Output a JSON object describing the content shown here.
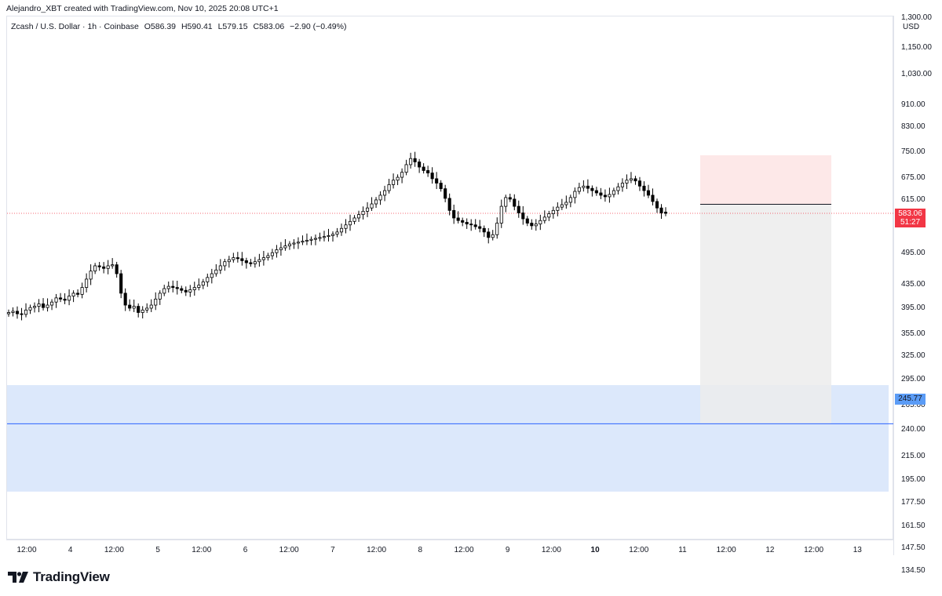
{
  "credit": "Alejandro_XBT created with TradingView.com, Nov 10, 2025 20:08 UTC+1",
  "symbol": {
    "name": "Zcash / U.S. Dollar · 1h · Coinbase",
    "open": "O586.39",
    "high": "H590.41",
    "low": "L579.15",
    "close": "C583.06",
    "change": "−2.90 (−0.49%)"
  },
  "currency": "USD",
  "price_tag": {
    "price": "583.06",
    "countdown": "51:27"
  },
  "level_tag": "245.77",
  "brand": "TradingView",
  "colors": {
    "up": "#ffffff",
    "down": "#000000",
    "stop_zone": "#fde8e8",
    "target_zone": "#ececec",
    "support_zone": "#dce8fb",
    "level_line": "#2962ff",
    "price_line": "#f23645"
  },
  "chart_data": {
    "type": "candlestick",
    "scale": "log",
    "ylim": [
      125,
      1400
    ],
    "y_ticks": [
      "1,300.00",
      "1,150.00",
      "1,030.00",
      "910.00",
      "830.00",
      "750.00",
      "675.00",
      "615.00",
      "495.00",
      "435.00",
      "395.00",
      "355.00",
      "325.00",
      "295.00",
      "265.00",
      "240.00",
      "215.00",
      "195.00",
      "177.50",
      "161.50",
      "147.50",
      "134.50"
    ],
    "x_ticks": [
      {
        "label": "12:00",
        "bold": false
      },
      {
        "label": "4",
        "bold": false
      },
      {
        "label": "12:00",
        "bold": false
      },
      {
        "label": "5",
        "bold": false
      },
      {
        "label": "12:00",
        "bold": false
      },
      {
        "label": "6",
        "bold": false
      },
      {
        "label": "12:00",
        "bold": false
      },
      {
        "label": "7",
        "bold": false
      },
      {
        "label": "12:00",
        "bold": false
      },
      {
        "label": "8",
        "bold": false
      },
      {
        "label": "12:00",
        "bold": false
      },
      {
        "label": "9",
        "bold": false
      },
      {
        "label": "12:00",
        "bold": false
      },
      {
        "label": "10",
        "bold": true
      },
      {
        "label": "12:00",
        "bold": false
      },
      {
        "label": "11",
        "bold": false
      },
      {
        "label": "12:00",
        "bold": false
      },
      {
        "label": "12",
        "bold": false
      },
      {
        "label": "12:00",
        "bold": false
      },
      {
        "label": "13",
        "bold": false
      }
    ],
    "candles_close": [
      388,
      390,
      386,
      385,
      392,
      396,
      398,
      402,
      396,
      400,
      405,
      412,
      410,
      408,
      415,
      420,
      418,
      430,
      445,
      460,
      470,
      468,
      465,
      470,
      472,
      455,
      420,
      400,
      395,
      398,
      388,
      392,
      395,
      400,
      410,
      420,
      428,
      432,
      430,
      428,
      425,
      422,
      426,
      430,
      434,
      440,
      448,
      455,
      462,
      470,
      478,
      482,
      486,
      484,
      480,
      476,
      474,
      478,
      482,
      486,
      490,
      496,
      502,
      506,
      510,
      514,
      516,
      518,
      520,
      522,
      524,
      526,
      528,
      530,
      532,
      535,
      540,
      548,
      556,
      564,
      572,
      580,
      588,
      596,
      606,
      616,
      628,
      640,
      656,
      668,
      676,
      690,
      712,
      730,
      720,
      705,
      695,
      688,
      672,
      660,
      645,
      620,
      590,
      572,
      566,
      562,
      558,
      556,
      552,
      548,
      540,
      528,
      534,
      560,
      600,
      622,
      618,
      600,
      584,
      570,
      560,
      554,
      558,
      566,
      574,
      582,
      590,
      598,
      604,
      610,
      622,
      638,
      648,
      652,
      646,
      640,
      634,
      628,
      624,
      630,
      640,
      650,
      660,
      668,
      672,
      666,
      652,
      640,
      628,
      612,
      596,
      584,
      583
    ],
    "candles_open": [
      386,
      388,
      390,
      386,
      385,
      392,
      396,
      398,
      402,
      396,
      400,
      405,
      412,
      410,
      408,
      415,
      420,
      418,
      430,
      445,
      460,
      470,
      468,
      465,
      470,
      472,
      455,
      420,
      400,
      395,
      398,
      388,
      392,
      395,
      400,
      410,
      420,
      428,
      432,
      430,
      428,
      425,
      422,
      426,
      430,
      434,
      440,
      448,
      455,
      462,
      470,
      478,
      482,
      486,
      484,
      480,
      476,
      474,
      478,
      482,
      486,
      490,
      496,
      502,
      506,
      510,
      514,
      516,
      518,
      520,
      522,
      524,
      526,
      528,
      530,
      532,
      535,
      540,
      548,
      556,
      564,
      572,
      580,
      588,
      596,
      606,
      616,
      628,
      640,
      656,
      668,
      676,
      690,
      712,
      730,
      720,
      705,
      695,
      688,
      672,
      660,
      645,
      620,
      590,
      572,
      566,
      562,
      558,
      556,
      552,
      548,
      540,
      528,
      534,
      560,
      600,
      622,
      618,
      600,
      584,
      570,
      560,
      554,
      558,
      566,
      574,
      582,
      590,
      598,
      604,
      610,
      622,
      638,
      648,
      652,
      646,
      640,
      634,
      628,
      624,
      630,
      640,
      650,
      660,
      668,
      672,
      666,
      652,
      640,
      628,
      612,
      596,
      586
    ],
    "current_price": 583.06,
    "level": 245.77,
    "support_zone": [
      186,
      288
    ],
    "position": {
      "entry": 605,
      "stop": 740,
      "target": 245.77
    }
  }
}
